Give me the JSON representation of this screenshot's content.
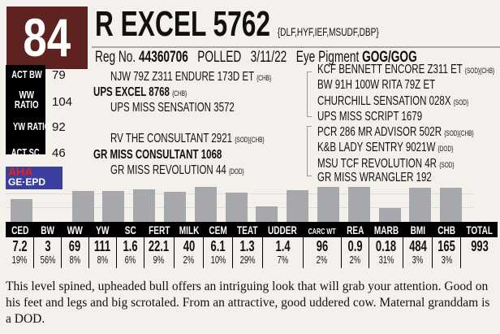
{
  "lot": "84",
  "name": "R EXCEL 5762",
  "genetic_codes": "{DLF,HYF,IEF,MSUDF,DBP}",
  "reg_label": "Reg No.",
  "reg_no": "44360706",
  "polled": "POLLED",
  "birth_date": "3/11/22",
  "eye_label": "Eye Pigment",
  "eye_value": "GOG/GOG",
  "stats": [
    {
      "label": "ACT BW",
      "value": "79"
    },
    {
      "label": "WW RATIO",
      "value": "104"
    },
    {
      "label": "YW RATIO",
      "value": "92"
    },
    {
      "label": "ACT SC",
      "value": "46"
    }
  ],
  "pedigree": {
    "sire_sire": "NJW 79Z Z311 ENDURE 173D ET",
    "sire_sire_tag": "{CHB}",
    "sire": "UPS EXCEL 8768",
    "sire_tag": "{CHB}",
    "sire_dam": "UPS MISS SENSATION 3572",
    "dam_sire": "RV THE CONSULTANT 2921",
    "dam_sire_tag": "{SOD}{CHB}",
    "dam": "GR MISS CONSULTANT 1068",
    "dam_dam": "GR MISS REVOLUTION 44",
    "dam_dam_tag": "{DOD}",
    "g": [
      {
        "name": "KCF BENNETT ENCORE Z311 ET",
        "tag": "{SOD}{CHB}"
      },
      {
        "name": "BW 91H 100W RITA 79Z ET",
        "tag": ""
      },
      {
        "name": "CHURCHILL SENSATION 028X",
        "tag": "{SOD}"
      },
      {
        "name": "UPS MISS SCRIPT 1679",
        "tag": ""
      },
      {
        "name": "PCR 286 MR ADVISOR 502R",
        "tag": "{SOD}{CHB}"
      },
      {
        "name": "K&B LADY SENTRY 9021W",
        "tag": "{DOD}"
      },
      {
        "name": "MSU TCF REVOLUTION 4R",
        "tag": "{SOD}"
      },
      {
        "name": "GR MISS WRANGLER 192",
        "tag": ""
      }
    ]
  },
  "logo": {
    "line1": "AHA",
    "line2": "GE·EPD"
  },
  "epd": {
    "headers": [
      "CED",
      "BW",
      "WW",
      "YW",
      "SC",
      "FERT",
      "MILK",
      "CEM",
      "TEAT",
      "UDDER",
      "CARC WT",
      "REA",
      "MARB",
      "BMI",
      "CHB",
      "TOTAL"
    ],
    "values": [
      "7.2",
      "3",
      "69",
      "111",
      "1.6",
      "22.1",
      "40",
      "6.1",
      "1.3",
      "1.4",
      "96",
      "0.9",
      "0.18",
      "484",
      "165",
      "993"
    ],
    "percentiles": [
      "19%",
      "56%",
      "8%",
      "8%",
      "6%",
      "9%",
      "2%",
      "10%",
      "29%",
      "7%",
      "2%",
      "2%",
      "31%",
      "3%",
      "3%",
      ""
    ],
    "percentile_numbers": [
      19,
      56,
      8,
      8,
      6,
      9,
      2,
      10,
      29,
      7,
      2,
      2,
      31,
      3,
      3
    ]
  },
  "description": "This level spined, upheaded bull offers an intriguing look that will grab your attention. Good on his feet and legs and big scrotaled. From an attractive, good uddered cow. Maternal granddam is a DOD.",
  "colors": {
    "lot_bg": "#5e2320",
    "bar": "#a7a8ab"
  }
}
